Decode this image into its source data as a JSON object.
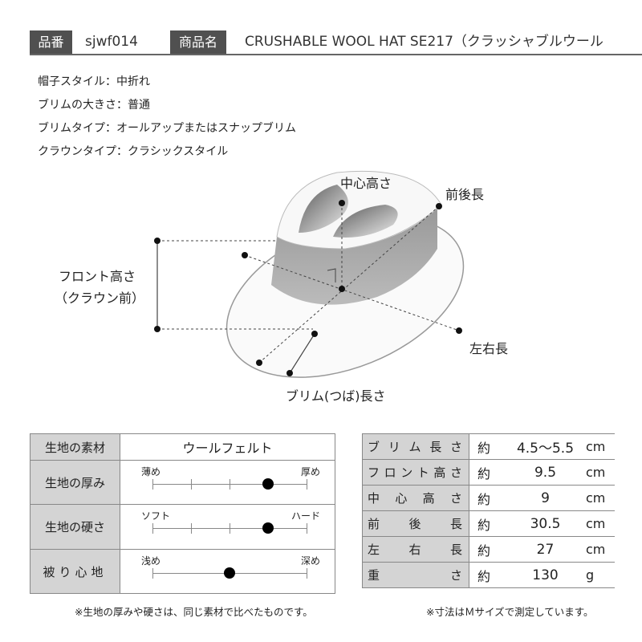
{
  "header": {
    "code_label": "品番",
    "code": "sjwf014",
    "name_label": "商品名",
    "name": "CRUSHABLE WOOL HAT SE217（クラッシャブルウール"
  },
  "specs": [
    "帽子スタイル：中折れ",
    "ブリムの大きさ：普通",
    "ブリムタイプ：オールアップまたはスナップブリム",
    "クラウンタイプ：クラシックスタイル"
  ],
  "diagram": {
    "center_height": "中心高さ",
    "front_back": "前後長",
    "front_height_1": "フロント高さ",
    "front_height_2": "（クラウン前）",
    "left_right": "左右長",
    "brim_length": "ブリム(つば)長さ"
  },
  "fabric": {
    "material_label": "生地の素材",
    "material": "ウールフェルト",
    "scales": [
      {
        "label": "生地の厚み",
        "min": "薄め",
        "max": "厚め",
        "level": 0.75
      },
      {
        "label": "生地の硬さ",
        "min": "ソフト",
        "max": "ハード",
        "level": 0.75
      },
      {
        "label": "被り心地",
        "min": "浅め",
        "max": "深め",
        "level": 0.5
      }
    ],
    "note": "※生地の厚みや硬さは、同じ素材で比べたものです。"
  },
  "sizes": {
    "rows": [
      {
        "label": "ブリム長さ",
        "approx": "約",
        "value": "4.5〜5.5",
        "unit": "cm"
      },
      {
        "label": "フロント高さ",
        "approx": "約",
        "value": "9.5",
        "unit": "cm"
      },
      {
        "label": "中心高さ",
        "approx": "約",
        "value": "9",
        "unit": "cm"
      },
      {
        "label": "前後長",
        "approx": "約",
        "value": "30.5",
        "unit": "cm"
      },
      {
        "label": "左右長",
        "approx": "約",
        "value": "27",
        "unit": "cm"
      },
      {
        "label": "重さ",
        "approx": "約",
        "value": "130",
        "unit": "g"
      }
    ],
    "note": "※寸法はＭサイズで測定しています。"
  }
}
